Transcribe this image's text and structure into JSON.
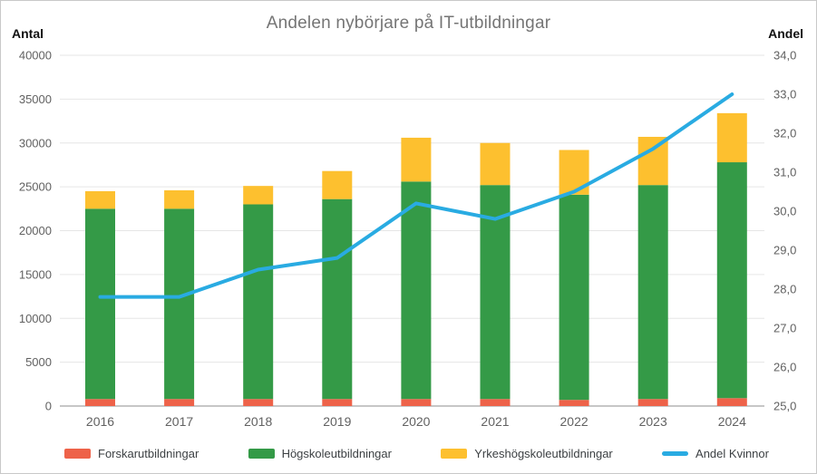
{
  "chart_data": {
    "type": "bar",
    "subtype": "stacked-bars-with-line-overlay",
    "title": "Andelen nybörjare på IT-utbildningar",
    "categories": [
      "2016",
      "2017",
      "2018",
      "2019",
      "2020",
      "2021",
      "2022",
      "2023",
      "2024"
    ],
    "series": [
      {
        "name": "Forskarutbildningar",
        "type": "bar",
        "axis": "left",
        "color": "#ee6249",
        "values": [
          800,
          800,
          800,
          800,
          800,
          800,
          700,
          800,
          900
        ]
      },
      {
        "name": "Högskoleutbildningar",
        "type": "bar",
        "axis": "left",
        "color": "#349a47",
        "values": [
          21700,
          21700,
          22200,
          22800,
          24800,
          24400,
          23400,
          24400,
          26900
        ]
      },
      {
        "name": "Yrkeshögskoleutbildningar",
        "type": "bar",
        "axis": "left",
        "color": "#fdc02f",
        "values": [
          2000,
          2100,
          2100,
          3200,
          5000,
          4800,
          5100,
          5500,
          5600
        ]
      },
      {
        "name": "Andel Kvinnor",
        "type": "line",
        "axis": "right",
        "color": "#29abe2",
        "values": [
          27.8,
          27.8,
          28.5,
          28.8,
          30.2,
          29.8,
          30.5,
          31.6,
          33.0
        ]
      }
    ],
    "stacked_totals": [
      24500,
      24600,
      25100,
      26800,
      30600,
      30000,
      29200,
      30700,
      33400
    ],
    "left_axis": {
      "title": "Antal",
      "min": 0,
      "max": 40000,
      "step": 5000
    },
    "right_axis": {
      "title": "Andel",
      "min": 25,
      "max": 34,
      "step": 1
    },
    "grid": true,
    "legend_position": "bottom"
  },
  "axes": {
    "left_title": "Antal",
    "right_title": "Andel",
    "left_tick_labels": [
      "0",
      "5000",
      "10000",
      "15000",
      "20000",
      "25000",
      "30000",
      "35000",
      "40000"
    ],
    "right_tick_labels": [
      "25,0",
      "26,0",
      "27,0",
      "28,0",
      "29,0",
      "30,0",
      "31,0",
      "32,0",
      "33,0",
      "34,0"
    ]
  },
  "legend": {
    "items": [
      {
        "label": "Forskarutbildningar",
        "color": "#ee6249",
        "type": "bar"
      },
      {
        "label": "Högskoleutbildningar",
        "color": "#349a47",
        "type": "bar"
      },
      {
        "label": "Yrkeshögskoleutbildningar",
        "color": "#fdc02f",
        "type": "bar"
      },
      {
        "label": "Andel Kvinnor",
        "color": "#29abe2",
        "type": "line"
      }
    ]
  },
  "colors": {
    "grid_line": "#e6e6e6",
    "zero_line": "#b3b3b3",
    "tick_label": "#616161",
    "title": "#757575"
  }
}
